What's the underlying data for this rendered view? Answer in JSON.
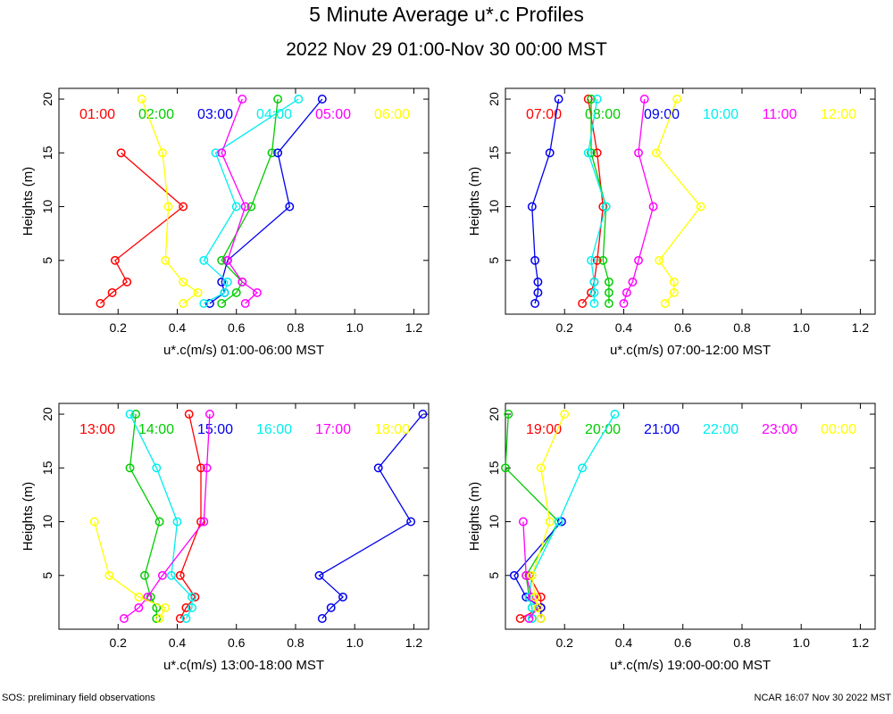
{
  "title": "5 Minute Average u*.c Profiles",
  "subtitle": "2022 Nov 29 01:00-Nov 30 00:00 MST",
  "footer_left": "SOS: preliminary field observations",
  "footer_right": "NCAR 16:07 Nov 30 2022 MST",
  "chart_data": [
    {
      "type": "line",
      "xlabel": "u*.c(m/s) 01:00-06:00 MST",
      "ylabel": "Heights (m)",
      "xlim": [
        0.0,
        1.25
      ],
      "ylim": [
        0,
        21
      ],
      "xticks": [
        "0.2",
        "0.4",
        "0.6",
        "0.8",
        "1.0",
        "1.2"
      ],
      "yticks": [
        "5",
        "10",
        "15",
        "20"
      ],
      "heights": [
        1,
        2,
        3,
        5,
        10,
        15,
        20
      ],
      "series": [
        {
          "name": "01:00",
          "color": "#ff0000",
          "values": [
            0.14,
            0.18,
            0.23,
            0.19,
            0.42,
            0.21,
            null
          ]
        },
        {
          "name": "02:00",
          "color": "#00cc00",
          "values": [
            0.55,
            0.6,
            0.62,
            0.55,
            0.65,
            0.72,
            0.74
          ]
        },
        {
          "name": "03:00",
          "color": "#0000ee",
          "values": [
            0.51,
            0.56,
            0.55,
            0.57,
            0.78,
            0.74,
            0.89
          ]
        },
        {
          "name": "04:00",
          "color": "#00eeee",
          "values": [
            0.49,
            0.56,
            0.57,
            0.49,
            0.6,
            0.53,
            0.81
          ]
        },
        {
          "name": "05:00",
          "color": "#ff00ff",
          "values": [
            0.63,
            0.67,
            0.62,
            0.57,
            0.63,
            0.55,
            0.62
          ]
        },
        {
          "name": "06:00",
          "color": "#ffff00",
          "values": [
            0.42,
            0.47,
            0.42,
            0.36,
            0.37,
            0.35,
            0.28
          ]
        }
      ]
    },
    {
      "type": "line",
      "xlabel": "u*.c(m/s) 07:00-12:00 MST",
      "ylabel": "Heights (m)",
      "xlim": [
        0.0,
        1.25
      ],
      "ylim": [
        0,
        21
      ],
      "xticks": [
        "0.2",
        "0.4",
        "0.6",
        "0.8",
        "1.0",
        "1.2"
      ],
      "yticks": [
        "5",
        "10",
        "15",
        "20"
      ],
      "heights": [
        1,
        2,
        3,
        5,
        10,
        15,
        20
      ],
      "series": [
        {
          "name": "07:00",
          "color": "#ff0000",
          "values": [
            0.26,
            0.29,
            0.3,
            0.31,
            0.33,
            0.31,
            0.28
          ]
        },
        {
          "name": "08:00",
          "color": "#00cc00",
          "values": [
            0.35,
            0.35,
            0.35,
            0.33,
            0.34,
            0.29,
            0.29
          ]
        },
        {
          "name": "09:00",
          "color": "#0000ee",
          "values": [
            0.1,
            0.11,
            0.11,
            0.1,
            0.09,
            0.15,
            0.18
          ]
        },
        {
          "name": "10:00",
          "color": "#00eeee",
          "values": [
            0.3,
            0.3,
            0.3,
            0.29,
            0.34,
            0.28,
            0.31
          ]
        },
        {
          "name": "11:00",
          "color": "#ff00ff",
          "values": [
            0.4,
            0.41,
            0.43,
            0.45,
            0.5,
            0.45,
            0.47
          ]
        },
        {
          "name": "12:00",
          "color": "#ffff00",
          "values": [
            0.54,
            0.57,
            0.57,
            0.52,
            0.66,
            0.51,
            0.58
          ]
        }
      ]
    },
    {
      "type": "line",
      "xlabel": "u*.c(m/s) 13:00-18:00 MST",
      "ylabel": "Heights (m)",
      "xlim": [
        0.0,
        1.25
      ],
      "ylim": [
        0,
        21
      ],
      "xticks": [
        "0.2",
        "0.4",
        "0.6",
        "0.8",
        "1.0",
        "1.2"
      ],
      "yticks": [
        "5",
        "10",
        "15",
        "20"
      ],
      "heights": [
        1,
        2,
        3,
        5,
        10,
        15,
        20
      ],
      "series": [
        {
          "name": "13:00",
          "color": "#ff0000",
          "values": [
            0.41,
            0.43,
            0.46,
            0.41,
            0.48,
            0.48,
            0.44
          ]
        },
        {
          "name": "14:00",
          "color": "#00cc00",
          "values": [
            0.33,
            0.33,
            0.31,
            0.29,
            0.34,
            0.24,
            0.26
          ]
        },
        {
          "name": "15:00",
          "color": "#0000ee",
          "values": [
            0.89,
            0.92,
            0.96,
            0.88,
            1.19,
            1.08,
            1.23
          ]
        },
        {
          "name": "16:00",
          "color": "#00eeee",
          "values": [
            0.43,
            0.45,
            0.45,
            0.38,
            0.4,
            0.33,
            0.24
          ]
        },
        {
          "name": "17:00",
          "color": "#ff00ff",
          "values": [
            0.22,
            0.27,
            0.3,
            0.35,
            0.49,
            0.5,
            0.51
          ]
        },
        {
          "name": "18:00",
          "color": "#ffff00",
          "values": [
            0.34,
            0.36,
            0.27,
            0.17,
            0.12,
            null,
            null
          ]
        }
      ]
    },
    {
      "type": "line",
      "xlabel": "u*.c(m/s) 19:00-00:00 MST",
      "ylabel": "Heights (m)",
      "xlim": [
        0.0,
        1.25
      ],
      "ylim": [
        0,
        21
      ],
      "xticks": [
        "0.2",
        "0.4",
        "0.6",
        "0.8",
        "1.0",
        "1.2"
      ],
      "yticks": [
        "5",
        "10",
        "15",
        "20"
      ],
      "heights": [
        1,
        2,
        3,
        5,
        10,
        15,
        20
      ],
      "series": [
        {
          "name": "19:00",
          "color": "#ff0000",
          "values": [
            0.05,
            0.12,
            0.12,
            0.08,
            null,
            null,
            null
          ]
        },
        {
          "name": "20:00",
          "color": "#00cc00",
          "values": [
            0.09,
            0.09,
            0.08,
            0.07,
            0.18,
            0.0,
            0.01
          ]
        },
        {
          "name": "21:00",
          "color": "#0000ee",
          "values": [
            0.12,
            0.12,
            0.07,
            0.03,
            0.19,
            null,
            null
          ]
        },
        {
          "name": "22:00",
          "color": "#00eeee",
          "values": [
            0.09,
            0.09,
            0.08,
            0.09,
            0.18,
            0.26,
            0.37
          ]
        },
        {
          "name": "23:00",
          "color": "#ff00ff",
          "values": [
            0.08,
            0.11,
            0.09,
            0.07,
            0.06,
            null,
            null
          ]
        },
        {
          "name": "00:00",
          "color": "#ffff00",
          "values": [
            0.12,
            0.11,
            0.1,
            0.09,
            0.15,
            0.12,
            0.2
          ]
        }
      ]
    }
  ]
}
